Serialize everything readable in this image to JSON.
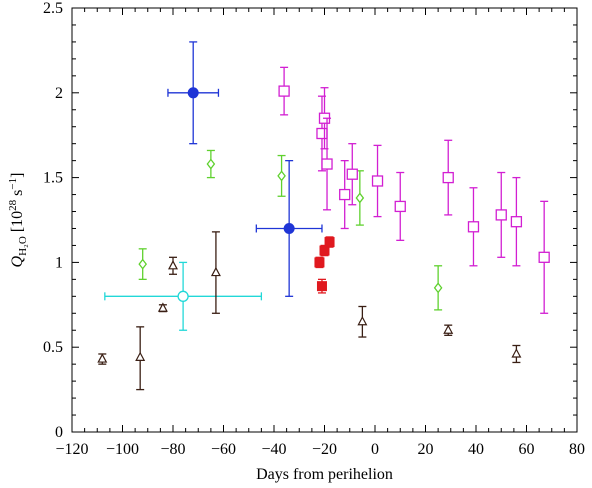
{
  "chart_data": {
    "type": "scatter",
    "title": "",
    "xlabel": "Days from perihelion",
    "ylabel": {
      "symbol": "Q",
      "subscript": "H₂O",
      "unit_open": " [10",
      "unit_exp": "28",
      "unit_mid": " s",
      "unit_exp2": "−1",
      "unit_close": "]"
    },
    "xlim": [
      -120,
      80
    ],
    "ylim": [
      0,
      2.5
    ],
    "xticks": [
      -120,
      -100,
      -80,
      -60,
      -40,
      -20,
      0,
      20,
      40,
      60,
      80
    ],
    "yticks": [
      0,
      0.5,
      1,
      1.5,
      2,
      2.5
    ],
    "ytick_labels": [
      "0",
      "0.5",
      "1",
      "1.5",
      "2",
      "2.5"
    ],
    "grid": false,
    "series": [
      {
        "marker": "circle-filled",
        "color": "#1f35d6",
        "points": [
          {
            "x": -72,
            "y": 2.0,
            "yerr": [
              0.3,
              0.3
            ],
            "xerr": [
              10,
              10
            ]
          },
          {
            "x": -34,
            "y": 1.2,
            "yerr": [
              0.4,
              0.4
            ],
            "xerr": [
              13,
              13
            ]
          }
        ]
      },
      {
        "marker": "circle-open",
        "color": "#22d8d8",
        "points": [
          {
            "x": -76,
            "y": 0.8,
            "yerr": [
              0.2,
              0.2
            ],
            "xerr": [
              31,
              31
            ]
          }
        ]
      },
      {
        "marker": "diamond-open",
        "color": "#5fd12e",
        "points": [
          {
            "x": -92,
            "y": 0.99,
            "yerr": [
              0.09,
              0.09
            ]
          },
          {
            "x": -65,
            "y": 1.58,
            "yerr": [
              0.08,
              0.08
            ]
          },
          {
            "x": -37,
            "y": 1.51,
            "yerr": [
              0.12,
              0.12
            ]
          },
          {
            "x": -6,
            "y": 1.38,
            "yerr": [
              0.16,
              0.16
            ]
          },
          {
            "x": 25,
            "y": 0.85,
            "yerr": [
              0.13,
              0.13
            ]
          }
        ]
      },
      {
        "marker": "square-open",
        "color": "#d21fd2",
        "points": [
          {
            "x": -36,
            "y": 2.01,
            "yerr": [
              0.14,
              0.14
            ]
          },
          {
            "x": -21,
            "y": 1.76,
            "yerr": [
              0.22,
              0.22
            ]
          },
          {
            "x": -20,
            "y": 1.85,
            "yerr": [
              0.18,
              0.18
            ]
          },
          {
            "x": -19,
            "y": 1.58,
            "yerr": [
              0.27,
              0.27
            ]
          },
          {
            "x": -12,
            "y": 1.4,
            "yerr": [
              0.2,
              0.2
            ]
          },
          {
            "x": -9,
            "y": 1.52,
            "yerr": [
              0.18,
              0.18
            ]
          },
          {
            "x": 1,
            "y": 1.48,
            "yerr": [
              0.21,
              0.21
            ]
          },
          {
            "x": 10,
            "y": 1.33,
            "yerr": [
              0.2,
              0.2
            ]
          },
          {
            "x": 29,
            "y": 1.5,
            "yerr": [
              0.22,
              0.22
            ]
          },
          {
            "x": 39,
            "y": 1.21,
            "yerr": [
              0.23,
              0.23
            ]
          },
          {
            "x": 50,
            "y": 1.28,
            "yerr": [
              0.25,
              0.25
            ]
          },
          {
            "x": 56,
            "y": 1.24,
            "yerr": [
              0.26,
              0.26
            ]
          },
          {
            "x": 67,
            "y": 1.03,
            "yerr": [
              0.33,
              0.33
            ]
          }
        ]
      },
      {
        "marker": "square-filled",
        "color": "#e0191f",
        "points": [
          {
            "x": -22,
            "y": 1.0,
            "yerr": [
              0.03,
              0.03
            ]
          },
          {
            "x": -20,
            "y": 1.07,
            "yerr": [
              0.03,
              0.03
            ]
          },
          {
            "x": -18,
            "y": 1.12,
            "yerr": [
              0.03,
              0.03
            ]
          },
          {
            "x": -21,
            "y": 0.86,
            "yerr": [
              0.04,
              0.04
            ]
          }
        ]
      },
      {
        "marker": "triangle-open",
        "color": "#3a1f14",
        "points": [
          {
            "x": -108,
            "y": 0.43,
            "yerr": [
              0.03,
              0.03
            ]
          },
          {
            "x": -93,
            "y": 0.44,
            "yerr": [
              0.19,
              0.18
            ]
          },
          {
            "x": -84,
            "y": 0.73,
            "yerr": [
              0.02,
              0.02
            ]
          },
          {
            "x": -80,
            "y": 0.98,
            "yerr": [
              0.05,
              0.05
            ]
          },
          {
            "x": -63,
            "y": 0.94,
            "yerr": [
              0.24,
              0.24
            ]
          },
          {
            "x": -5,
            "y": 0.65,
            "yerr": [
              0.09,
              0.09
            ]
          },
          {
            "x": 29,
            "y": 0.6,
            "yerr": [
              0.03,
              0.03
            ]
          },
          {
            "x": 56,
            "y": 0.46,
            "yerr": [
              0.05,
              0.05
            ]
          }
        ]
      }
    ]
  }
}
